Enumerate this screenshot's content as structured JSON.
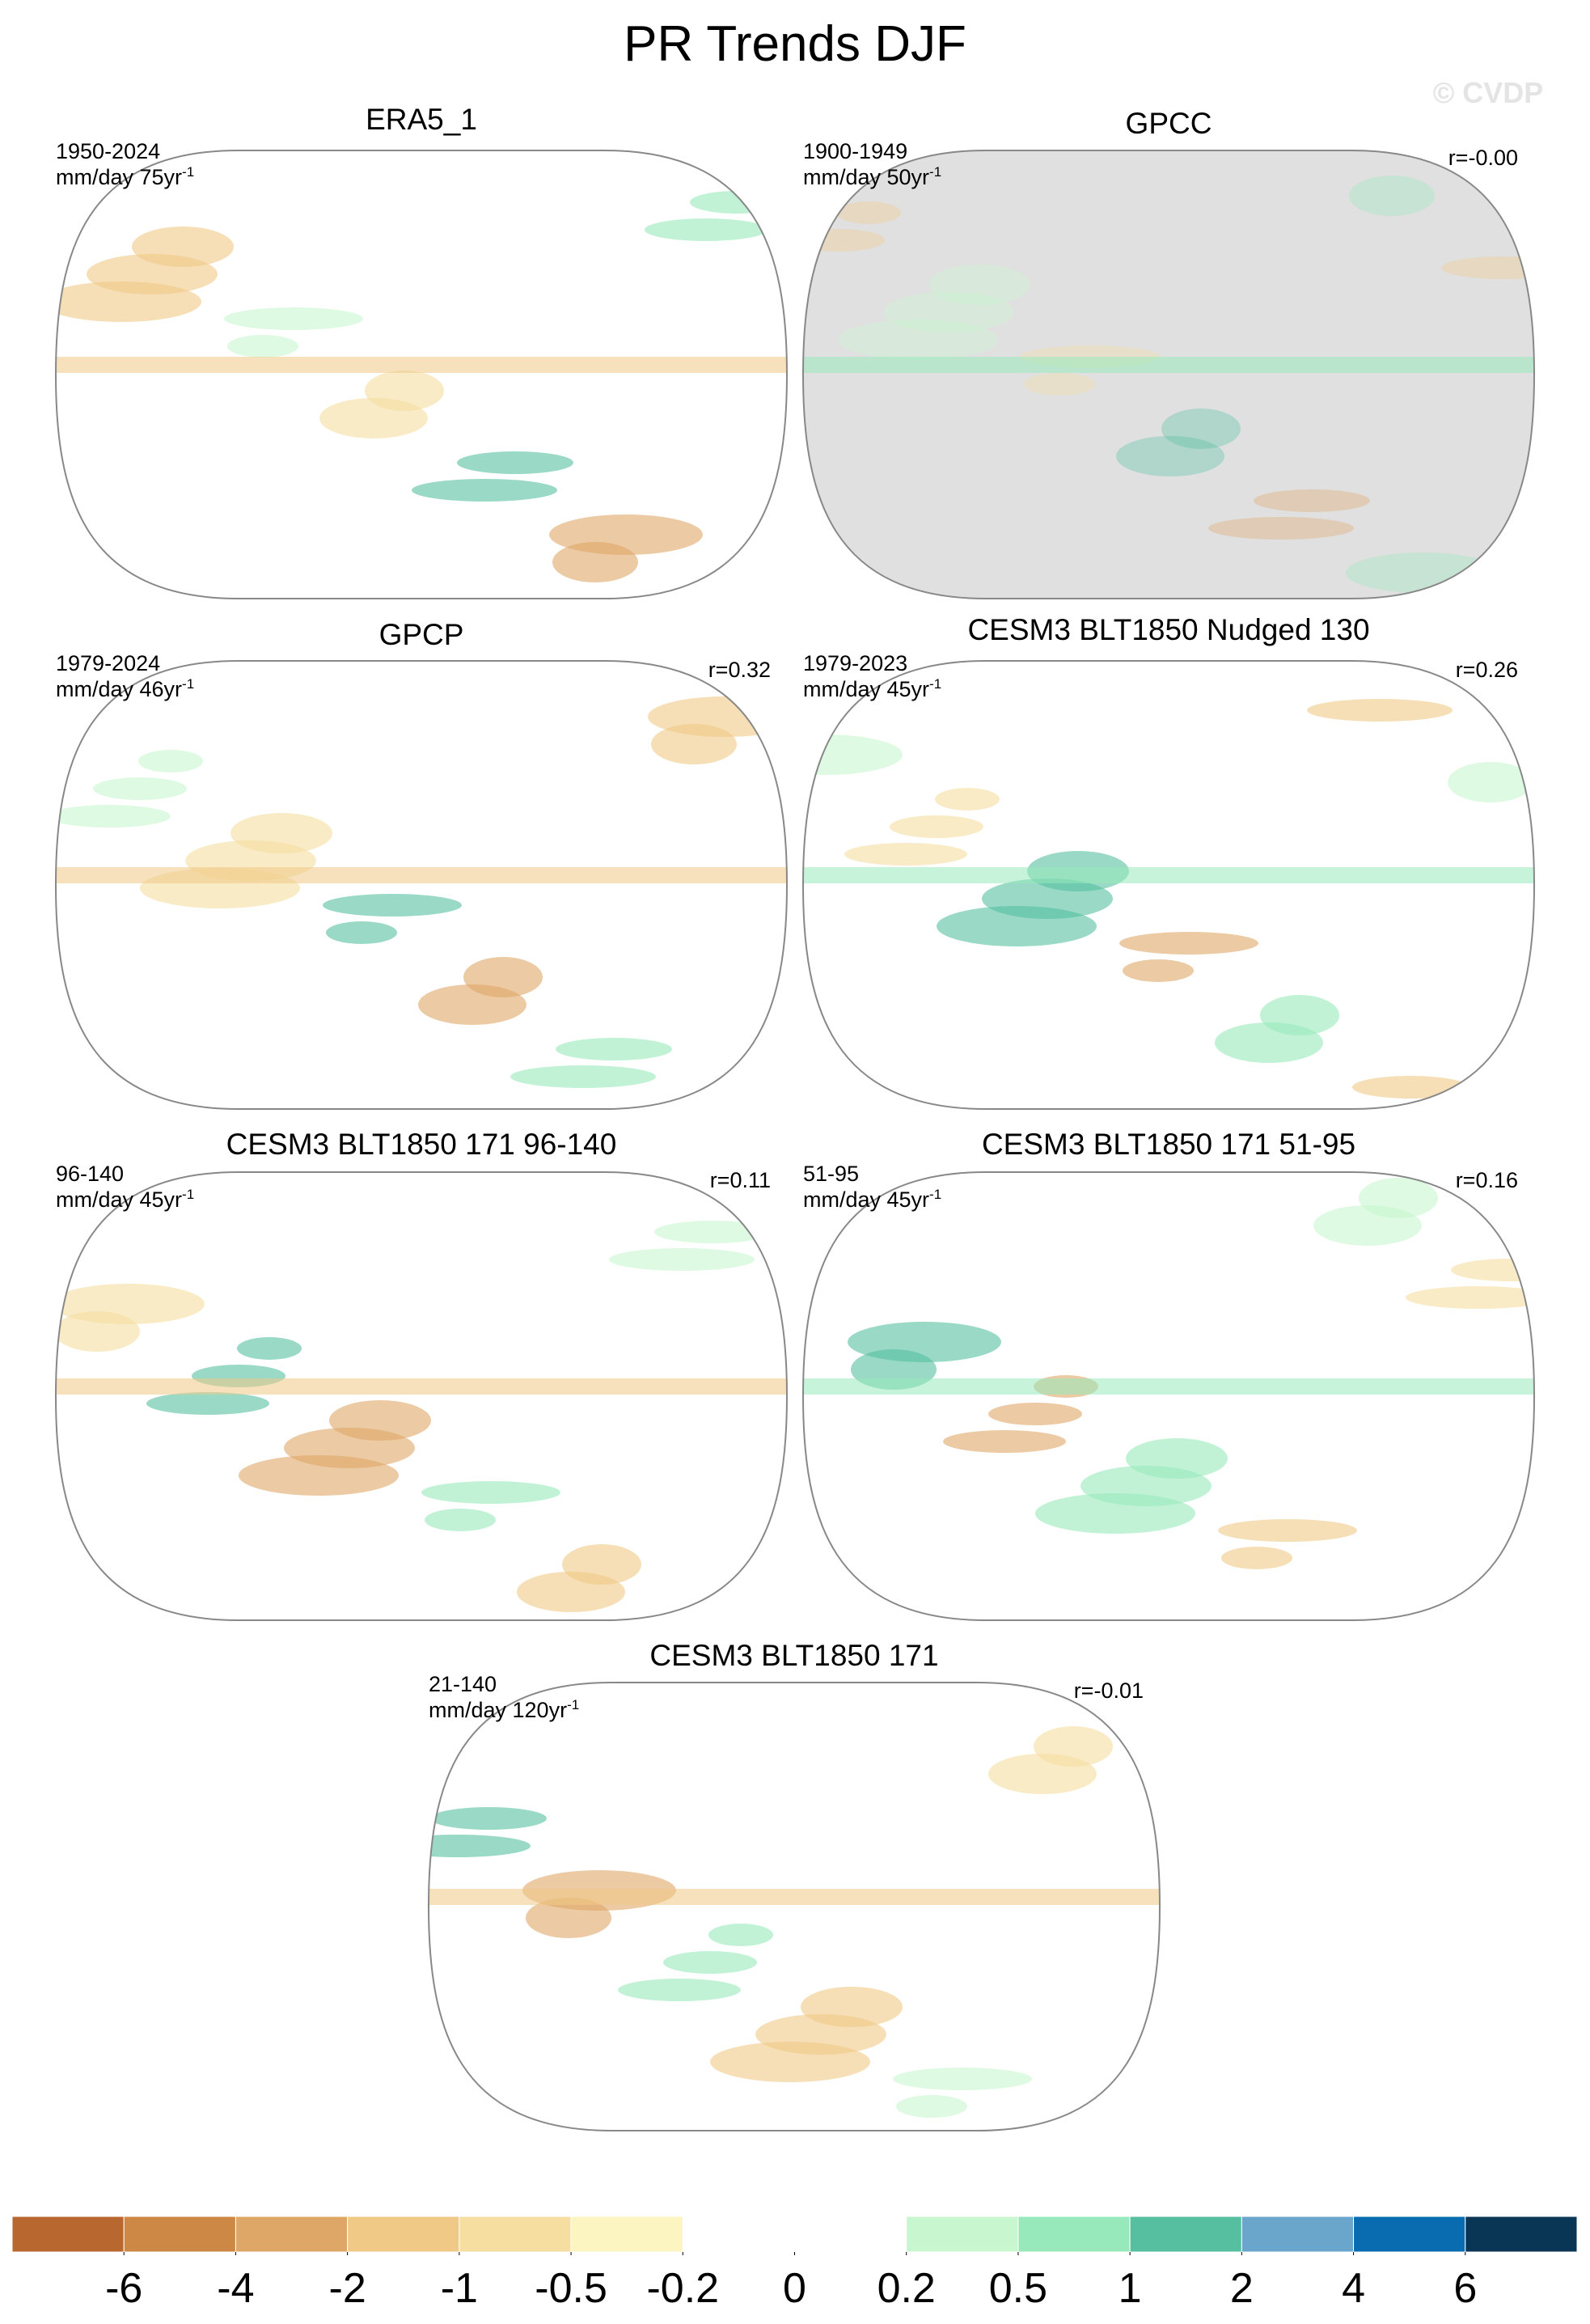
{
  "title": "PR Trends DJF",
  "watermark": "© CVDP",
  "panels": [
    {
      "title": "ERA5_1",
      "period": "1950-2024",
      "unit": "mm/day 75yr",
      "exponent": "-1"
    },
    {
      "title": "GPCC",
      "period": "1900-1949",
      "unit": "mm/day 50yr",
      "exponent": "-1",
      "r": "r=-0.00",
      "fill": "#e0e0e0"
    },
    {
      "title": "GPCP",
      "period": "1979-2024",
      "unit": "mm/day 46yr",
      "exponent": "-1",
      "r": "r=0.32"
    },
    {
      "title": "CESM3 BLT1850 Nudged 130",
      "period": "1979-2023",
      "unit": "mm/day 45yr",
      "exponent": "-1",
      "r": "r=0.26"
    },
    {
      "title": "CESM3 BLT1850 171 96-140",
      "period": "96-140",
      "unit": "mm/day 45yr",
      "exponent": "-1",
      "r": "r=0.11"
    },
    {
      "title": "CESM3 BLT1850 171 51-95",
      "period": "51-95",
      "unit": "mm/day 45yr",
      "exponent": "-1",
      "r": "r=0.16"
    },
    {
      "title": "CESM3 BLT1850 171",
      "period": "21-140",
      "unit": "mm/day 120yr",
      "exponent": "-1",
      "r": "r=-0.01"
    }
  ],
  "colorbar": {
    "levels": [
      -6,
      -4,
      -2,
      -1,
      -0.5,
      -0.2,
      0,
      0.2,
      0.5,
      1,
      2,
      4,
      6
    ],
    "colors": [
      "#b8672f",
      "#cd8845",
      "#dfa767",
      "#f0c986",
      "#f5dea0",
      "#fdf5c1",
      "#ffffff",
      "#ffffff",
      "#c8f7cf",
      "#97e9bb",
      "#55bfa0",
      "#6aa6cc",
      "#0a6cb0",
      "#0a3656"
    ]
  }
}
